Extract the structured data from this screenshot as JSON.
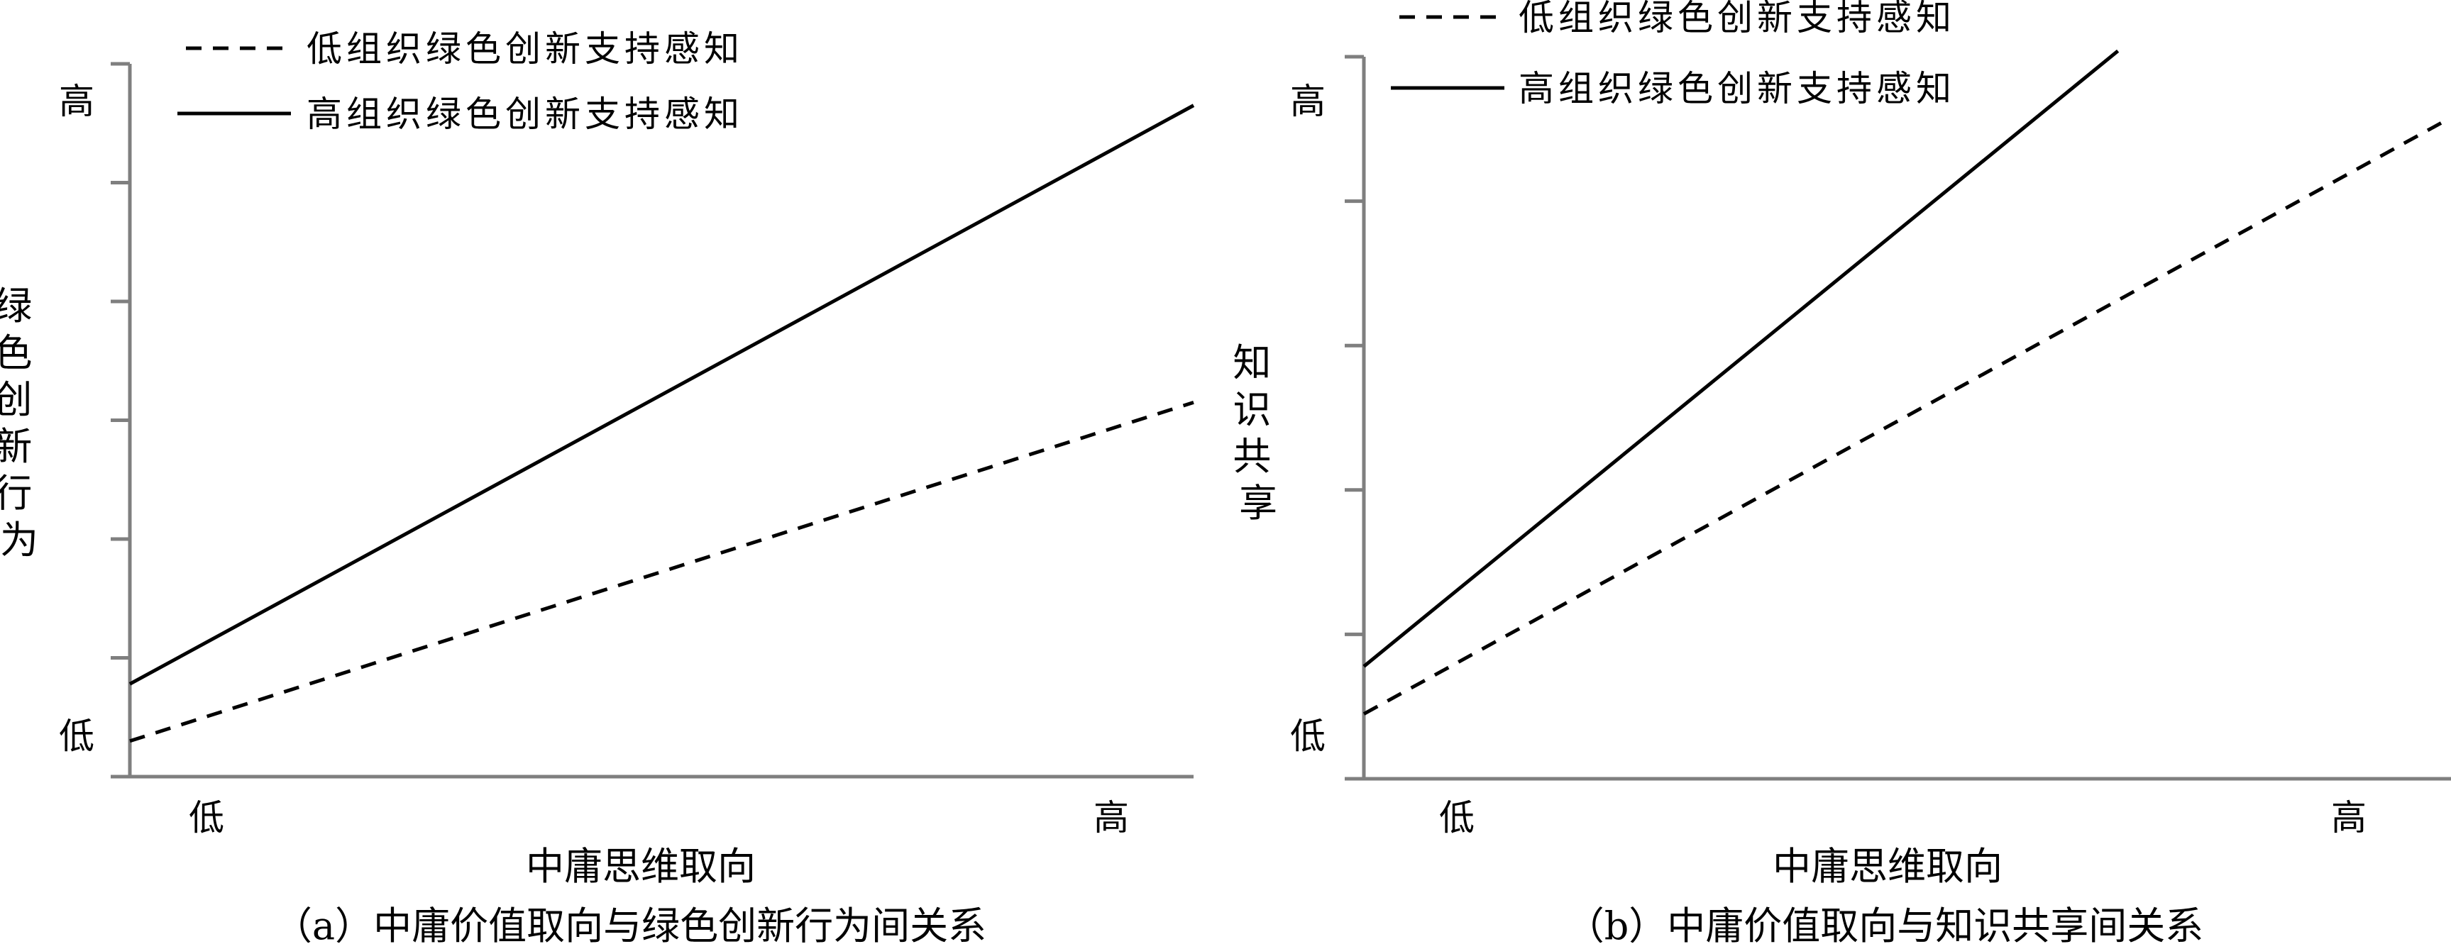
{
  "charts": [
    {
      "id": "a",
      "caption": "（a）中庸价值取向与绿色创新行为间关系",
      "xlabel": "中庸思维取向",
      "ylabel": "绿色创新行为",
      "x_tick_labels": [
        "低",
        "高"
      ],
      "y_tick_labels": [
        "低",
        "高"
      ],
      "legend": [
        "低组织绿色创新支持感知",
        "高组织绿色创新支持感知"
      ],
      "legend_placement": "top-left",
      "ylim": [
        0,
        6
      ],
      "y_tick_count": 7
    },
    {
      "id": "b",
      "caption": "（b）中庸价值取向与知识共享间关系",
      "xlabel": "中庸思维取向",
      "ylabel": "知识共享",
      "x_tick_labels": [
        "低",
        "高"
      ],
      "y_tick_labels": [
        "低",
        "高"
      ],
      "legend": [
        "低组织绿色创新支持感知",
        "高组织绿色创新支持感知"
      ],
      "legend_placement": "top-left",
      "ylim": [
        0,
        5
      ],
      "y_tick_count": 6
    }
  ],
  "chart_data": [
    {
      "type": "line",
      "xlabel": "中庸思维取向",
      "ylabel": "绿色创新行为",
      "categories": [
        "低",
        "高"
      ],
      "ylim": [
        0,
        6
      ],
      "grid": false,
      "series": [
        {
          "name": "低组织绿色创新支持感知",
          "style": "dashed",
          "x": [
            0,
            1
          ],
          "y": [
            0.3,
            3.15
          ]
        },
        {
          "name": "高组织绿色创新支持感知",
          "style": "solid",
          "x": [
            0,
            1
          ],
          "y": [
            0.78,
            5.65
          ]
        }
      ]
    },
    {
      "type": "line",
      "xlabel": "中庸思维取向",
      "ylabel": "知识共享",
      "categories": [
        "低",
        "高"
      ],
      "ylim": [
        0,
        5
      ],
      "grid": false,
      "series": [
        {
          "name": "低组织绿色创新支持感知",
          "style": "dashed",
          "x": [
            0,
            1
          ],
          "y": [
            0.45,
            4.55
          ]
        },
        {
          "name": "高组织绿色创新支持感知",
          "style": "solid",
          "x": [
            0,
            0.7
          ],
          "y": [
            0.78,
            5.05
          ]
        }
      ]
    }
  ]
}
